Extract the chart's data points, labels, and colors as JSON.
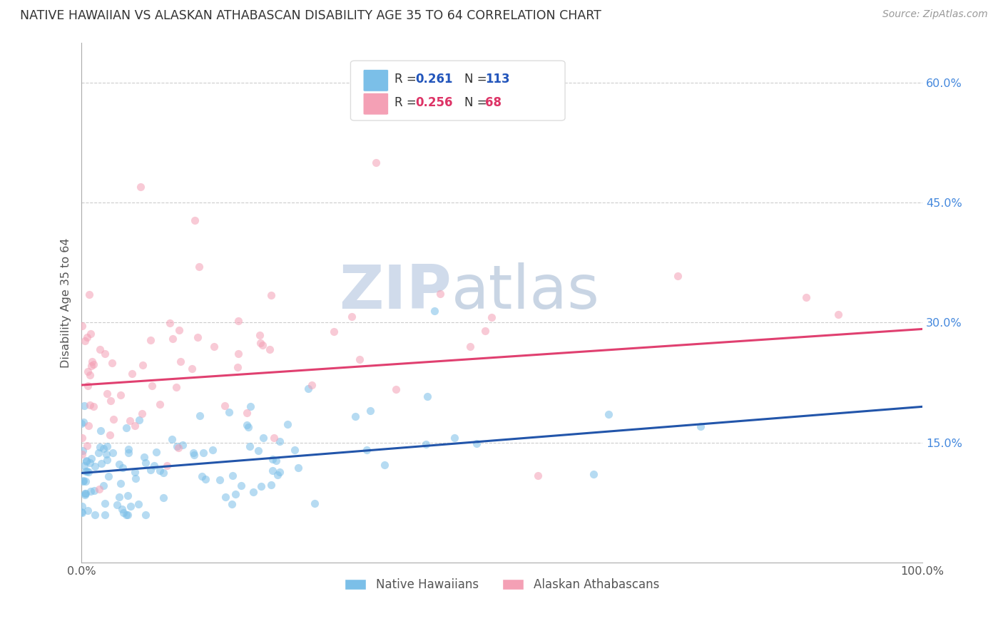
{
  "title": "NATIVE HAWAIIAN VS ALASKAN ATHABASCAN DISABILITY AGE 35 TO 64 CORRELATION CHART",
  "source": "Source: ZipAtlas.com",
  "ylabel": "Disability Age 35 to 64",
  "xlim": [
    0.0,
    1.0
  ],
  "ylim": [
    0.0,
    0.65
  ],
  "ytick_vals": [
    0.15,
    0.3,
    0.45,
    0.6
  ],
  "ytick_labels": [
    "15.0%",
    "30.0%",
    "45.0%",
    "60.0%"
  ],
  "color_blue": "#7BBFE8",
  "color_pink": "#F4A0B5",
  "line_blue": "#2255AA",
  "line_pink": "#E04070",
  "marker_size": 65,
  "marker_alpha": 0.55,
  "watermark_zip": "ZIP",
  "watermark_atlas": "atlas",
  "watermark_color_zip": "#C5D8EE",
  "watermark_color_atlas": "#C0D0E8",
  "native_hawaiian_label": "Native Hawaiians",
  "alaskan_label": "Alaskan Athabascans",
  "nh_line_start": 0.112,
  "nh_line_end": 0.195,
  "aa_line_start": 0.222,
  "aa_line_end": 0.292
}
